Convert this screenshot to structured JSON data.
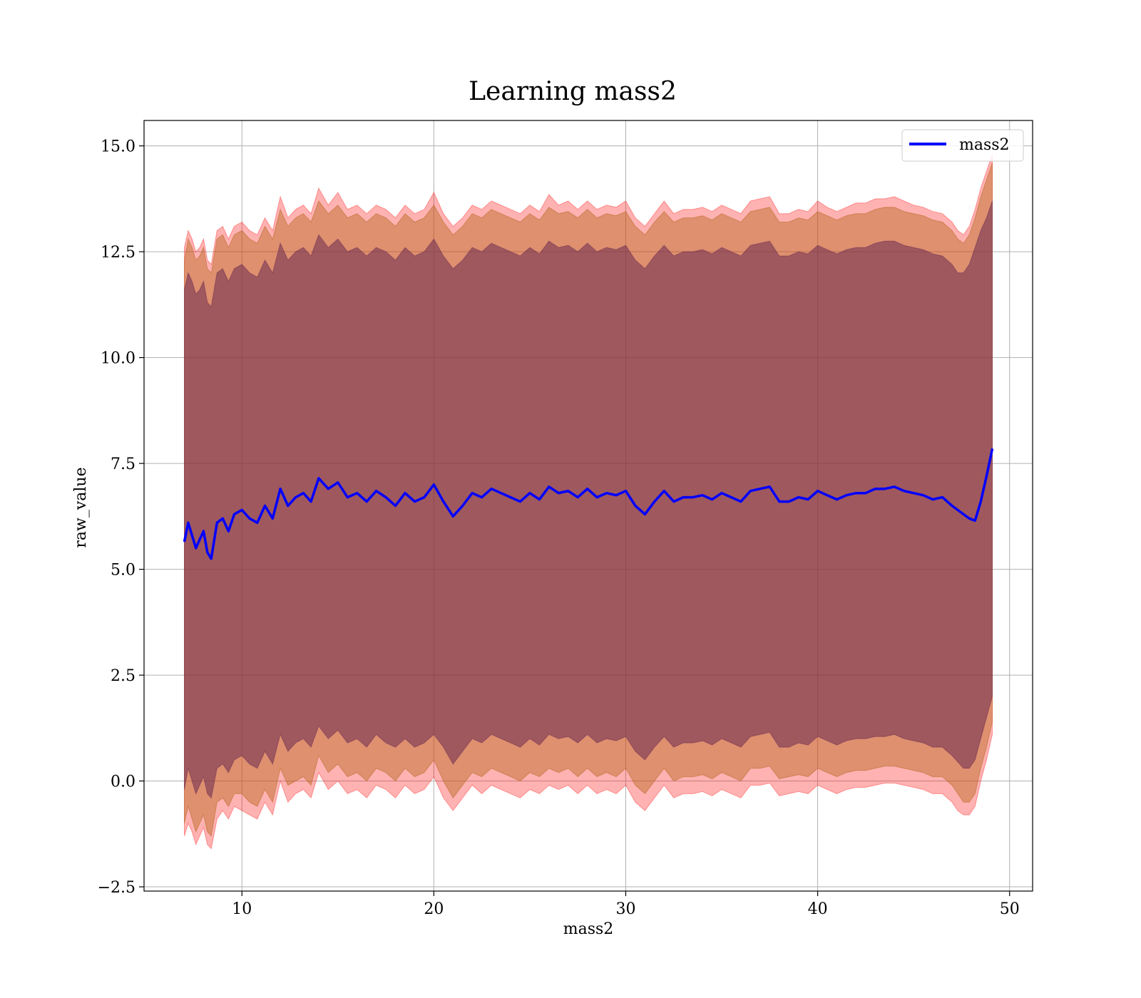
{
  "chart_data": {
    "type": "line",
    "title": "Learning mass2",
    "xlabel": "mass2",
    "ylabel": "raw_value",
    "xlim": [
      4.9,
      51.2
    ],
    "ylim": [
      -2.6,
      15.6
    ],
    "xticks": [
      10,
      20,
      30,
      40,
      50
    ],
    "xtick_labels": [
      "10",
      "20",
      "30",
      "40",
      "50"
    ],
    "yticks": [
      -2.5,
      0.0,
      2.5,
      5.0,
      7.5,
      10.0,
      12.5,
      15.0
    ],
    "ytick_labels": [
      "−2.5",
      "0.0",
      "2.5",
      "5.0",
      "7.5",
      "10.0",
      "12.5",
      "15.0"
    ],
    "grid": true,
    "legend": {
      "position": "top-right",
      "entries": [
        "mass2"
      ]
    },
    "colors": {
      "line": "#0000ff",
      "band_outer": "#ff0000",
      "band_middle": "#b5651d",
      "band_inner": "#6b2a50",
      "grid": "#b0b0b0"
    },
    "series": [
      {
        "name": "mass2",
        "x": [
          7.0,
          7.2,
          7.4,
          7.6,
          7.8,
          8.0,
          8.2,
          8.4,
          8.7,
          9.0,
          9.3,
          9.6,
          10.0,
          10.4,
          10.8,
          11.2,
          11.6,
          12.0,
          12.4,
          12.8,
          13.2,
          13.6,
          14.0,
          14.5,
          15.0,
          15.5,
          16.0,
          16.5,
          17.0,
          17.5,
          18.0,
          18.5,
          19.0,
          19.5,
          20.0,
          20.5,
          21.0,
          21.5,
          22.0,
          22.5,
          23.0,
          23.5,
          24.0,
          24.5,
          25.0,
          25.5,
          26.0,
          26.5,
          27.0,
          27.5,
          28.0,
          28.5,
          29.0,
          29.5,
          30.0,
          30.5,
          31.0,
          31.5,
          32.0,
          32.5,
          33.0,
          33.5,
          34.0,
          34.5,
          35.0,
          35.5,
          36.0,
          36.5,
          37.0,
          37.5,
          38.0,
          38.5,
          39.0,
          39.5,
          40.0,
          40.5,
          41.0,
          41.5,
          42.0,
          42.5,
          43.0,
          43.5,
          44.0,
          44.5,
          45.0,
          45.5,
          46.0,
          46.5,
          47.0,
          47.3,
          47.6,
          47.9,
          48.2,
          48.5,
          48.8,
          49.1
        ],
        "mean": [
          5.65,
          6.1,
          5.8,
          5.5,
          5.7,
          5.9,
          5.4,
          5.25,
          6.1,
          6.2,
          5.9,
          6.3,
          6.4,
          6.2,
          6.1,
          6.5,
          6.2,
          6.9,
          6.5,
          6.7,
          6.8,
          6.6,
          7.15,
          6.9,
          7.05,
          6.7,
          6.8,
          6.6,
          6.85,
          6.7,
          6.5,
          6.8,
          6.6,
          6.7,
          7.0,
          6.6,
          6.25,
          6.5,
          6.8,
          6.7,
          6.9,
          6.8,
          6.7,
          6.6,
          6.8,
          6.65,
          6.95,
          6.8,
          6.85,
          6.7,
          6.9,
          6.7,
          6.8,
          6.75,
          6.85,
          6.5,
          6.3,
          6.6,
          6.85,
          6.6,
          6.7,
          6.7,
          6.75,
          6.65,
          6.8,
          6.7,
          6.6,
          6.85,
          6.9,
          6.95,
          6.6,
          6.6,
          6.7,
          6.65,
          6.85,
          6.75,
          6.65,
          6.75,
          6.8,
          6.8,
          6.9,
          6.9,
          6.95,
          6.85,
          6.8,
          6.75,
          6.65,
          6.7,
          6.5,
          6.4,
          6.3,
          6.2,
          6.15,
          6.6,
          7.2,
          7.85
        ],
        "lower_outer": [
          -1.3,
          -1.0,
          -1.2,
          -1.5,
          -1.3,
          -1.1,
          -1.5,
          -1.6,
          -0.9,
          -0.7,
          -0.9,
          -0.6,
          -0.7,
          -0.8,
          -0.9,
          -0.5,
          -0.8,
          0.0,
          -0.5,
          -0.3,
          -0.2,
          -0.4,
          0.2,
          -0.2,
          0.0,
          -0.3,
          -0.2,
          -0.4,
          -0.1,
          -0.2,
          -0.4,
          -0.1,
          -0.3,
          -0.2,
          0.1,
          -0.4,
          -0.7,
          -0.4,
          -0.1,
          -0.3,
          -0.1,
          -0.2,
          -0.3,
          -0.4,
          -0.2,
          -0.3,
          -0.1,
          -0.2,
          -0.1,
          -0.3,
          -0.1,
          -0.3,
          -0.2,
          -0.3,
          -0.1,
          -0.5,
          -0.7,
          -0.4,
          -0.1,
          -0.4,
          -0.3,
          -0.3,
          -0.25,
          -0.35,
          -0.2,
          -0.3,
          -0.4,
          -0.1,
          -0.1,
          -0.05,
          -0.35,
          -0.3,
          -0.25,
          -0.3,
          -0.1,
          -0.2,
          -0.3,
          -0.2,
          -0.15,
          -0.15,
          -0.1,
          -0.05,
          -0.05,
          -0.1,
          -0.15,
          -0.2,
          -0.3,
          -0.3,
          -0.5,
          -0.7,
          -0.8,
          -0.8,
          -0.6,
          0.0,
          0.5,
          1.1
        ],
        "lower_middle": [
          -1.0,
          -0.6,
          -0.9,
          -1.2,
          -1.0,
          -0.8,
          -1.2,
          -1.3,
          -0.5,
          -0.4,
          -0.6,
          -0.3,
          -0.3,
          -0.5,
          -0.6,
          -0.2,
          -0.5,
          0.3,
          -0.1,
          0.0,
          0.1,
          -0.1,
          0.6,
          0.2,
          0.4,
          0.1,
          0.2,
          0.0,
          0.3,
          0.2,
          0.0,
          0.3,
          0.1,
          0.2,
          0.5,
          0.0,
          -0.4,
          -0.1,
          0.2,
          0.1,
          0.3,
          0.2,
          0.1,
          0.0,
          0.2,
          0.1,
          0.3,
          0.2,
          0.3,
          0.1,
          0.3,
          0.1,
          0.2,
          0.1,
          0.3,
          -0.1,
          -0.3,
          0.0,
          0.3,
          0.0,
          0.1,
          0.1,
          0.15,
          0.05,
          0.2,
          0.1,
          0.0,
          0.3,
          0.3,
          0.35,
          0.05,
          0.1,
          0.15,
          0.1,
          0.3,
          0.2,
          0.1,
          0.2,
          0.25,
          0.25,
          0.3,
          0.35,
          0.35,
          0.3,
          0.25,
          0.2,
          0.1,
          0.1,
          -0.1,
          -0.3,
          -0.5,
          -0.5,
          -0.3,
          0.3,
          0.8,
          1.4
        ],
        "lower_inner": [
          -0.2,
          0.3,
          0.0,
          -0.3,
          -0.1,
          0.1,
          -0.3,
          -0.4,
          0.3,
          0.4,
          0.2,
          0.5,
          0.6,
          0.4,
          0.3,
          0.7,
          0.4,
          1.1,
          0.7,
          0.9,
          1.0,
          0.8,
          1.3,
          1.0,
          1.2,
          0.9,
          1.0,
          0.8,
          1.1,
          0.9,
          0.8,
          1.0,
          0.8,
          0.9,
          1.1,
          0.8,
          0.4,
          0.7,
          1.0,
          0.9,
          1.1,
          1.0,
          0.9,
          0.8,
          1.0,
          0.85,
          1.1,
          1.0,
          1.05,
          0.9,
          1.1,
          0.9,
          1.0,
          0.95,
          1.05,
          0.7,
          0.5,
          0.8,
          1.05,
          0.8,
          0.9,
          0.9,
          0.95,
          0.85,
          1.0,
          0.9,
          0.8,
          1.05,
          1.1,
          1.15,
          0.8,
          0.8,
          0.9,
          0.85,
          1.05,
          0.95,
          0.85,
          0.95,
          1.0,
          1.0,
          1.05,
          1.05,
          1.1,
          1.0,
          0.95,
          0.9,
          0.8,
          0.8,
          0.6,
          0.45,
          0.3,
          0.3,
          0.5,
          1.0,
          1.5,
          2.0
        ],
        "upper_inner": [
          11.6,
          12.0,
          11.8,
          11.5,
          11.6,
          11.8,
          11.3,
          11.2,
          12.0,
          12.1,
          11.8,
          12.1,
          12.2,
          12.0,
          11.9,
          12.3,
          12.0,
          12.7,
          12.3,
          12.5,
          12.6,
          12.4,
          12.9,
          12.6,
          12.8,
          12.5,
          12.6,
          12.4,
          12.6,
          12.5,
          12.3,
          12.6,
          12.4,
          12.5,
          12.8,
          12.4,
          12.1,
          12.3,
          12.6,
          12.5,
          12.7,
          12.6,
          12.5,
          12.4,
          12.6,
          12.45,
          12.75,
          12.6,
          12.65,
          12.5,
          12.7,
          12.5,
          12.6,
          12.55,
          12.65,
          12.3,
          12.1,
          12.4,
          12.65,
          12.4,
          12.5,
          12.5,
          12.55,
          12.45,
          12.6,
          12.5,
          12.4,
          12.65,
          12.7,
          12.75,
          12.4,
          12.4,
          12.5,
          12.45,
          12.65,
          12.55,
          12.45,
          12.55,
          12.6,
          12.6,
          12.7,
          12.75,
          12.75,
          12.65,
          12.6,
          12.55,
          12.45,
          12.4,
          12.2,
          12.0,
          12.0,
          12.2,
          12.6,
          13.0,
          13.3,
          13.7
        ],
        "upper_middle": [
          12.3,
          12.8,
          12.6,
          12.3,
          12.4,
          12.6,
          12.1,
          12.0,
          12.8,
          12.9,
          12.6,
          12.9,
          13.0,
          12.8,
          12.7,
          13.1,
          12.8,
          13.5,
          13.1,
          13.3,
          13.4,
          13.2,
          13.7,
          13.4,
          13.6,
          13.3,
          13.4,
          13.2,
          13.4,
          13.3,
          13.1,
          13.4,
          13.2,
          13.3,
          13.6,
          13.2,
          12.9,
          13.1,
          13.4,
          13.3,
          13.5,
          13.4,
          13.3,
          13.2,
          13.4,
          13.25,
          13.55,
          13.4,
          13.45,
          13.3,
          13.5,
          13.3,
          13.4,
          13.35,
          13.45,
          13.1,
          12.9,
          13.2,
          13.45,
          13.2,
          13.3,
          13.3,
          13.35,
          13.25,
          13.4,
          13.3,
          13.2,
          13.45,
          13.5,
          13.55,
          13.2,
          13.2,
          13.3,
          13.25,
          13.45,
          13.35,
          13.25,
          13.35,
          13.4,
          13.4,
          13.5,
          13.55,
          13.55,
          13.45,
          13.4,
          13.35,
          13.25,
          13.2,
          13.0,
          12.8,
          12.7,
          12.9,
          13.3,
          13.8,
          14.2,
          14.6
        ],
        "upper_outer": [
          12.6,
          13.0,
          12.8,
          12.5,
          12.6,
          12.8,
          12.3,
          12.2,
          13.0,
          13.1,
          12.8,
          13.1,
          13.2,
          13.0,
          12.9,
          13.3,
          13.0,
          13.8,
          13.3,
          13.5,
          13.6,
          13.4,
          14.0,
          13.6,
          13.9,
          13.5,
          13.6,
          13.4,
          13.6,
          13.5,
          13.3,
          13.6,
          13.4,
          13.5,
          13.9,
          13.4,
          13.1,
          13.3,
          13.6,
          13.5,
          13.7,
          13.6,
          13.5,
          13.4,
          13.6,
          13.45,
          13.85,
          13.6,
          13.7,
          13.5,
          13.7,
          13.5,
          13.6,
          13.55,
          13.7,
          13.3,
          13.1,
          13.4,
          13.7,
          13.4,
          13.5,
          13.5,
          13.55,
          13.45,
          13.6,
          13.5,
          13.4,
          13.7,
          13.75,
          13.8,
          13.4,
          13.4,
          13.5,
          13.45,
          13.7,
          13.55,
          13.45,
          13.55,
          13.65,
          13.65,
          13.75,
          13.75,
          13.8,
          13.7,
          13.6,
          13.55,
          13.45,
          13.4,
          13.2,
          13.0,
          12.9,
          13.1,
          13.5,
          14.0,
          14.4,
          14.8
        ]
      }
    ]
  }
}
